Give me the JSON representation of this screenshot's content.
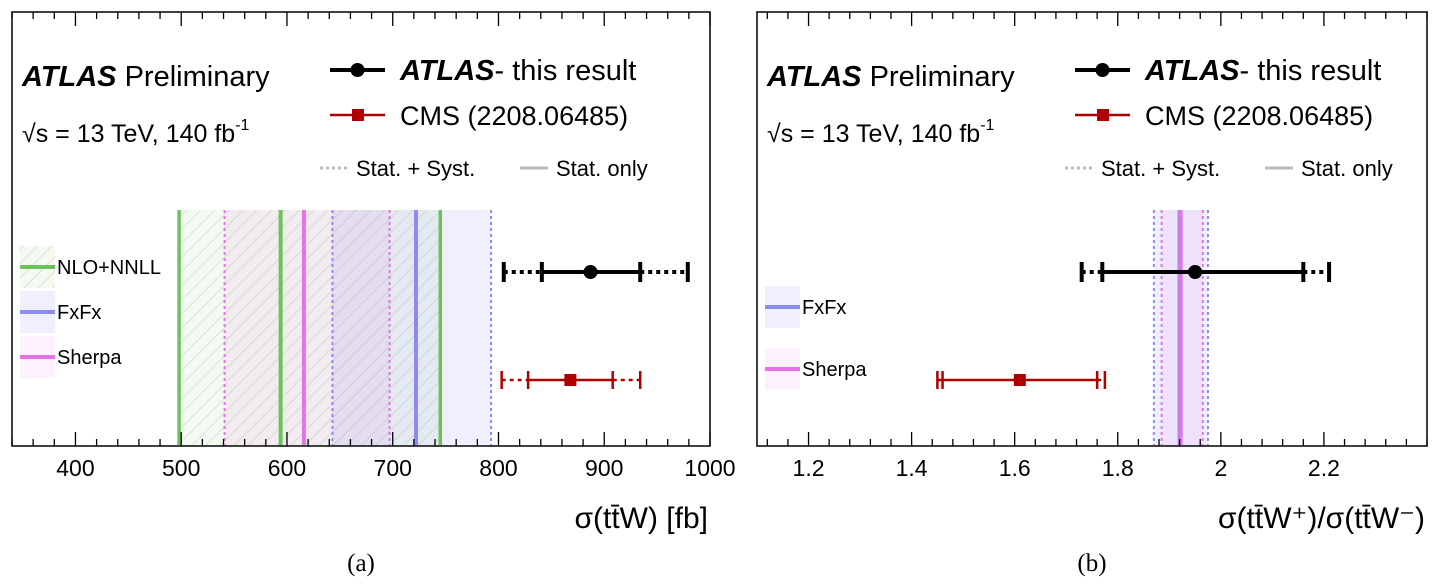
{
  "chart_data": [
    {
      "type": "scatter",
      "panel_label": "(a)",
      "header": {
        "experiment": "ATLAS",
        "status": "Preliminary",
        "energy_prefix": "√s = 13 TeV, 140 fb",
        "energy_sup": "-1"
      },
      "xlabel": {
        "main": "σ(tt̄W)",
        "unit": " [fb]"
      },
      "xlim": [
        340,
        1000
      ],
      "xticks": [
        "400",
        "500",
        "600",
        "700",
        "800",
        "900",
        "1000"
      ],
      "xtick_values": [
        400,
        500,
        600,
        700,
        800,
        900,
        1000
      ],
      "legend": {
        "atlas_bold": "ATLAS",
        "atlas_rest": "- this result",
        "cms": "CMS (2208.06485)",
        "stat_syst": "Stat. + Syst.",
        "stat_only": "Stat. only"
      },
      "predictions": [
        {
          "name": "NLO+NNLL",
          "central": 594,
          "band": [
            498,
            745
          ],
          "color": "#6cc35a",
          "hatch": true
        },
        {
          "name": "FxFx",
          "central": 722,
          "band": [
            643,
            793
          ],
          "color": "#8c8cf0",
          "hatch": false
        },
        {
          "name": "Sherpa",
          "central": 616,
          "band": [
            541,
            697
          ],
          "color": "#e673e6",
          "hatch": false
        }
      ],
      "measurements": [
        {
          "name": "ATLAS",
          "central": 887,
          "stat": [
            841,
            934
          ],
          "total": [
            805,
            979
          ],
          "color": "#000000",
          "marker": "circle",
          "row": 0
        },
        {
          "name": "CMS",
          "central": 868,
          "stat": [
            828,
            908
          ],
          "total": [
            803,
            934
          ],
          "color": "#b00000",
          "marker": "square",
          "row": 1
        }
      ]
    },
    {
      "type": "scatter",
      "panel_label": "(b)",
      "header": {
        "experiment": "ATLAS",
        "status": "Preliminary",
        "energy_prefix": "√s = 13 TeV, 140 fb",
        "energy_sup": "-1"
      },
      "xlabel": {
        "main": "σ(tt̄W⁺)/σ(tt̄W⁻)",
        "unit": ""
      },
      "xlim": [
        1.1,
        2.4
      ],
      "xticks": [
        "1.2",
        "1.4",
        "1.6",
        "1.8",
        "2",
        "2.2"
      ],
      "xtick_values": [
        1.2,
        1.4,
        1.6,
        1.8,
        2.0,
        2.2
      ],
      "legend": {
        "atlas_bold": "ATLAS",
        "atlas_rest": "- this result",
        "cms": "CMS (2208.06485)",
        "stat_syst": "Stat. + Syst.",
        "stat_only": "Stat. only"
      },
      "predictions": [
        {
          "name": "FxFx",
          "central": 1.92,
          "band": [
            1.87,
            1.975
          ],
          "color": "#8c8cf0",
          "hatch": false
        },
        {
          "name": "Sherpa",
          "central": 1.922,
          "band": [
            1.885,
            1.965
          ],
          "color": "#e673e6",
          "hatch": false
        }
      ],
      "measurements": [
        {
          "name": "ATLAS",
          "central": 1.95,
          "stat": [
            1.77,
            2.16
          ],
          "total": [
            1.73,
            2.21
          ],
          "color": "#000000",
          "marker": "circle",
          "row": 0
        },
        {
          "name": "CMS",
          "central": 1.61,
          "stat": [
            1.46,
            1.76
          ],
          "total": [
            1.45,
            1.775
          ],
          "color": "#b00000",
          "marker": "square",
          "row": 1
        }
      ]
    }
  ]
}
